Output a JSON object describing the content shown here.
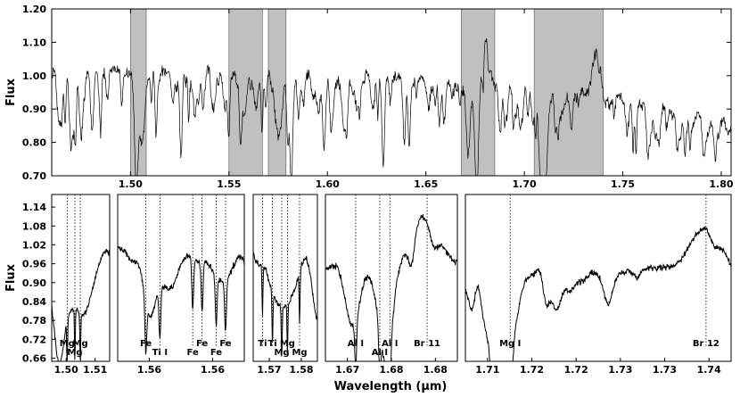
{
  "chart_data": {
    "type": "line",
    "ylabel": "Flux",
    "xlabel": "Wavelength (μm)",
    "top_panel": {
      "xlim": [
        1.46,
        1.805
      ],
      "ylim": [
        0.7,
        1.2
      ],
      "yticks": [
        "0.70",
        "0.80",
        "0.90",
        "1.00",
        "1.10",
        "1.20"
      ],
      "xticks": [
        "1.50",
        "1.55",
        "1.60",
        "1.65",
        "1.70",
        "1.75",
        "1.80"
      ],
      "shaded_regions": [
        [
          1.5,
          1.508
        ],
        [
          1.55,
          1.567
        ],
        [
          1.57,
          1.579
        ],
        [
          1.668,
          1.685
        ],
        [
          1.705,
          1.74
        ]
      ],
      "continuum": [
        [
          1.46,
          1.02
        ],
        [
          1.5,
          1.02
        ],
        [
          1.55,
          1.015
        ],
        [
          1.6,
          1.005
        ],
        [
          1.65,
          0.99
        ],
        [
          1.7,
          0.975
        ],
        [
          1.75,
          0.93
        ],
        [
          1.805,
          0.86
        ]
      ],
      "features": [
        {
          "x": 1.5045,
          "depth": -0.17,
          "w": 0.0012
        },
        {
          "x": 1.5025,
          "depth": -0.12,
          "w": 0.001
        },
        {
          "x": 1.5565,
          "depth": -0.08,
          "w": 0.001
        },
        {
          "x": 1.5635,
          "depth": -0.1,
          "w": 0.001
        },
        {
          "x": 1.5745,
          "depth": -0.13,
          "w": 0.001
        },
        {
          "x": 1.5765,
          "depth": -0.12,
          "w": 0.001
        },
        {
          "x": 1.6715,
          "depth": -0.22,
          "w": 0.001
        },
        {
          "x": 1.6755,
          "depth": -0.24,
          "w": 0.001
        },
        {
          "x": 1.6811,
          "depth": 0.15,
          "w": 0.0018
        },
        {
          "x": 1.711,
          "depth": -0.22,
          "w": 0.001
        },
        {
          "x": 1.7367,
          "depth": 0.16,
          "w": 0.0018
        }
      ]
    },
    "bottom_panels": [
      {
        "xlim": [
          1.502,
          1.5095
        ],
        "xticks": [
          "1.50",
          "1.51"
        ]
      },
      {
        "xlim": [
          1.5525,
          1.566
        ],
        "xticks": [
          "1.56",
          "1.56"
        ]
      },
      {
        "xlim": [
          1.571,
          1.58
        ],
        "xticks": [
          "1.57",
          "1.58"
        ]
      },
      {
        "xlim": [
          1.668,
          1.685
        ],
        "xticks": [
          "1.67",
          "1.68",
          "1.68"
        ]
      },
      {
        "xlim": [
          1.705,
          1.74
        ],
        "xticks": [
          "1.71",
          "1.72",
          "1.72",
          "1.73",
          "1.73",
          "1.74"
        ]
      }
    ],
    "bottom_ylim": [
      0.65,
      1.18
    ],
    "bottom_yticks": [
      "0.66",
      "0.72",
      "0.78",
      "0.84",
      "0.90",
      "0.96",
      "1.02",
      "1.08",
      "1.14"
    ],
    "line_ids": [
      {
        "label": "Mg",
        "x": 1.504,
        "row": 0
      },
      {
        "label": "Mg",
        "x": 1.505,
        "row": 1
      },
      {
        "label": "Mg",
        "x": 1.5057,
        "row": 0
      },
      {
        "label": "Fe",
        "x": 1.5555,
        "row": 0
      },
      {
        "label": "Ti I",
        "x": 1.557,
        "row": 1
      },
      {
        "label": "Fe",
        "x": 1.5605,
        "row": 1
      },
      {
        "label": "Fe",
        "x": 1.5615,
        "row": 0
      },
      {
        "label": "Fe",
        "x": 1.563,
        "row": 1
      },
      {
        "label": "Fe",
        "x": 1.564,
        "row": 0
      },
      {
        "label": "Ti",
        "x": 1.5723,
        "row": 0
      },
      {
        "label": "Ti",
        "x": 1.5737,
        "row": 0
      },
      {
        "label": "Mg",
        "x": 1.575,
        "row": 1
      },
      {
        "label": "Mg",
        "x": 1.5758,
        "row": 0
      },
      {
        "label": "Mg",
        "x": 1.5775,
        "row": 1
      },
      {
        "label": "Al I",
        "x": 1.6719,
        "row": 0
      },
      {
        "label": "Al I",
        "x": 1.675,
        "row": 1
      },
      {
        "label": "Al I",
        "x": 1.6763,
        "row": 0
      },
      {
        "label": "Br 11",
        "x": 1.6811,
        "row": 0
      },
      {
        "label": "Mg I",
        "x": 1.7109,
        "row": 0
      },
      {
        "label": "Br 12",
        "x": 1.7367,
        "row": 0
      }
    ]
  }
}
